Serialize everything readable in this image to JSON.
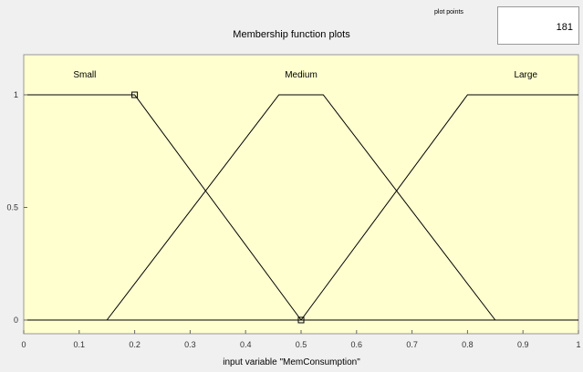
{
  "header": {
    "title": "Membership function plots",
    "plot_points_label": "plot points",
    "plot_points_value": "181"
  },
  "plot": {
    "xlabel": "input variable \"MemConsumption\"",
    "x_ticks": [
      "0",
      "0.1",
      "0.2",
      "0.3",
      "0.4",
      "0.5",
      "0.6",
      "0.7",
      "0.8",
      "0.9",
      "1"
    ],
    "y_ticks": [
      "0",
      "0.5",
      "1"
    ],
    "x_range": [
      0,
      1
    ],
    "y_range": [
      0,
      1
    ],
    "background_color": "#ffffd0",
    "line_color": "#000000"
  },
  "chart_data": {
    "type": "line",
    "title": "Membership function plots",
    "xlabel": "input variable \"MemConsumption\"",
    "ylabel": "",
    "xlim": [
      0,
      1
    ],
    "ylim": [
      0,
      1
    ],
    "grid": false,
    "series": [
      {
        "name": "Small",
        "x": [
          0,
          0.2,
          0.5
        ],
        "y": [
          1,
          1,
          0
        ]
      },
      {
        "name": "Medium",
        "x": [
          0.15,
          0.46,
          0.54,
          0.85
        ],
        "y": [
          0,
          1,
          1,
          0
        ]
      },
      {
        "name": "Large",
        "x": [
          0.5,
          0.8,
          1.0
        ],
        "y": [
          0,
          1,
          1
        ]
      }
    ],
    "selected_markers": [
      {
        "x": 0.2,
        "y": 1
      },
      {
        "x": 0.5,
        "y": 0
      }
    ]
  }
}
